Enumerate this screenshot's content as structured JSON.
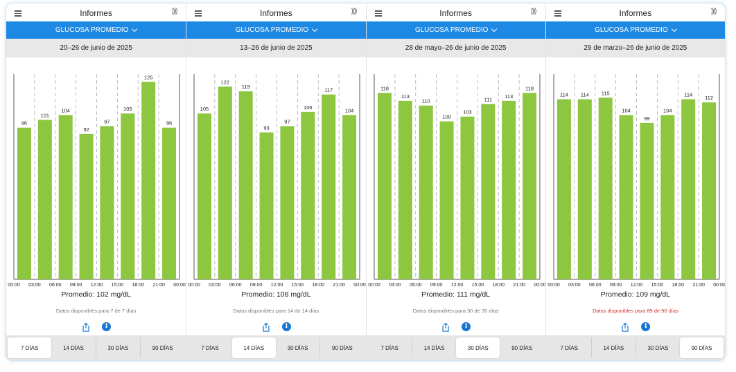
{
  "app": {
    "title": "Informes",
    "report_type": "GLUCOSA PROMEDIO",
    "time_labels": [
      "00:00",
      "03:00",
      "06:00",
      "09:00",
      "12:00",
      "15:00",
      "18:00",
      "21:00",
      "00:00"
    ],
    "tabs": [
      "7 DÍAS",
      "14 DÍAS",
      "30 DÍAS",
      "90 DÍAS"
    ],
    "icons": {
      "menu": "hamburger-icon",
      "nfc": "nfc-signal-icon",
      "dropdown": "chevron-down-icon",
      "share": "share-icon",
      "info": "info-icon"
    },
    "colors": {
      "bar": "#8dc63f",
      "header": "#1e88e5",
      "warning": "#d32f2f"
    }
  },
  "panels": [
    {
      "date_range": "20–26 de junio de 2025",
      "average": "Promedio: 102 mg/dL",
      "availability": "Datos disponibles para 7 de 7 días",
      "availability_warning": false,
      "active_tab": 0,
      "chart_data": {
        "type": "bar",
        "categories": [
          "00:00–03:00",
          "03:00–06:00",
          "06:00–09:00",
          "09:00–12:00",
          "12:00–15:00",
          "15:00–18:00",
          "18:00–21:00",
          "21:00–00:00"
        ],
        "values": [
          96,
          101,
          104,
          92,
          97,
          105,
          125,
          96
        ]
      }
    },
    {
      "date_range": "13–26 de junio de 2025",
      "average": "Promedio: 108 mg/dL",
      "availability": "Datos disponibles para 14 de 14 días",
      "availability_warning": false,
      "active_tab": 1,
      "chart_data": {
        "type": "bar",
        "categories": [
          "00:00–03:00",
          "03:00–06:00",
          "06:00–09:00",
          "09:00–12:00",
          "12:00–15:00",
          "15:00–18:00",
          "18:00–21:00",
          "21:00–00:00"
        ],
        "values": [
          105,
          122,
          119,
          93,
          97,
          106,
          117,
          104
        ]
      }
    },
    {
      "date_range": "28 de mayo–26 de junio de 2025",
      "average": "Promedio: 111 mg/dL",
      "availability": "Datos disponibles para 30 de 30 días",
      "availability_warning": false,
      "active_tab": 2,
      "chart_data": {
        "type": "bar",
        "categories": [
          "00:00–03:00",
          "03:00–06:00",
          "06:00–09:00",
          "09:00–12:00",
          "12:00–15:00",
          "15:00–18:00",
          "18:00–21:00",
          "21:00–00:00"
        ],
        "values": [
          118,
          113,
          110,
          100,
          103,
          111,
          113,
          118
        ]
      }
    },
    {
      "date_range": "29 de marzo–26 de junio de 2025",
      "average": "Promedio: 109 mg/dL",
      "availability": "Datos disponibles para 89 de 90 días",
      "availability_warning": true,
      "active_tab": 3,
      "chart_data": {
        "type": "bar",
        "categories": [
          "00:00–03:00",
          "03:00–06:00",
          "06:00–09:00",
          "09:00–12:00",
          "12:00–15:00",
          "15:00–18:00",
          "18:00–21:00",
          "21:00–00:00"
        ],
        "values": [
          114,
          114,
          115,
          104,
          99,
          104,
          114,
          112
        ]
      }
    }
  ]
}
